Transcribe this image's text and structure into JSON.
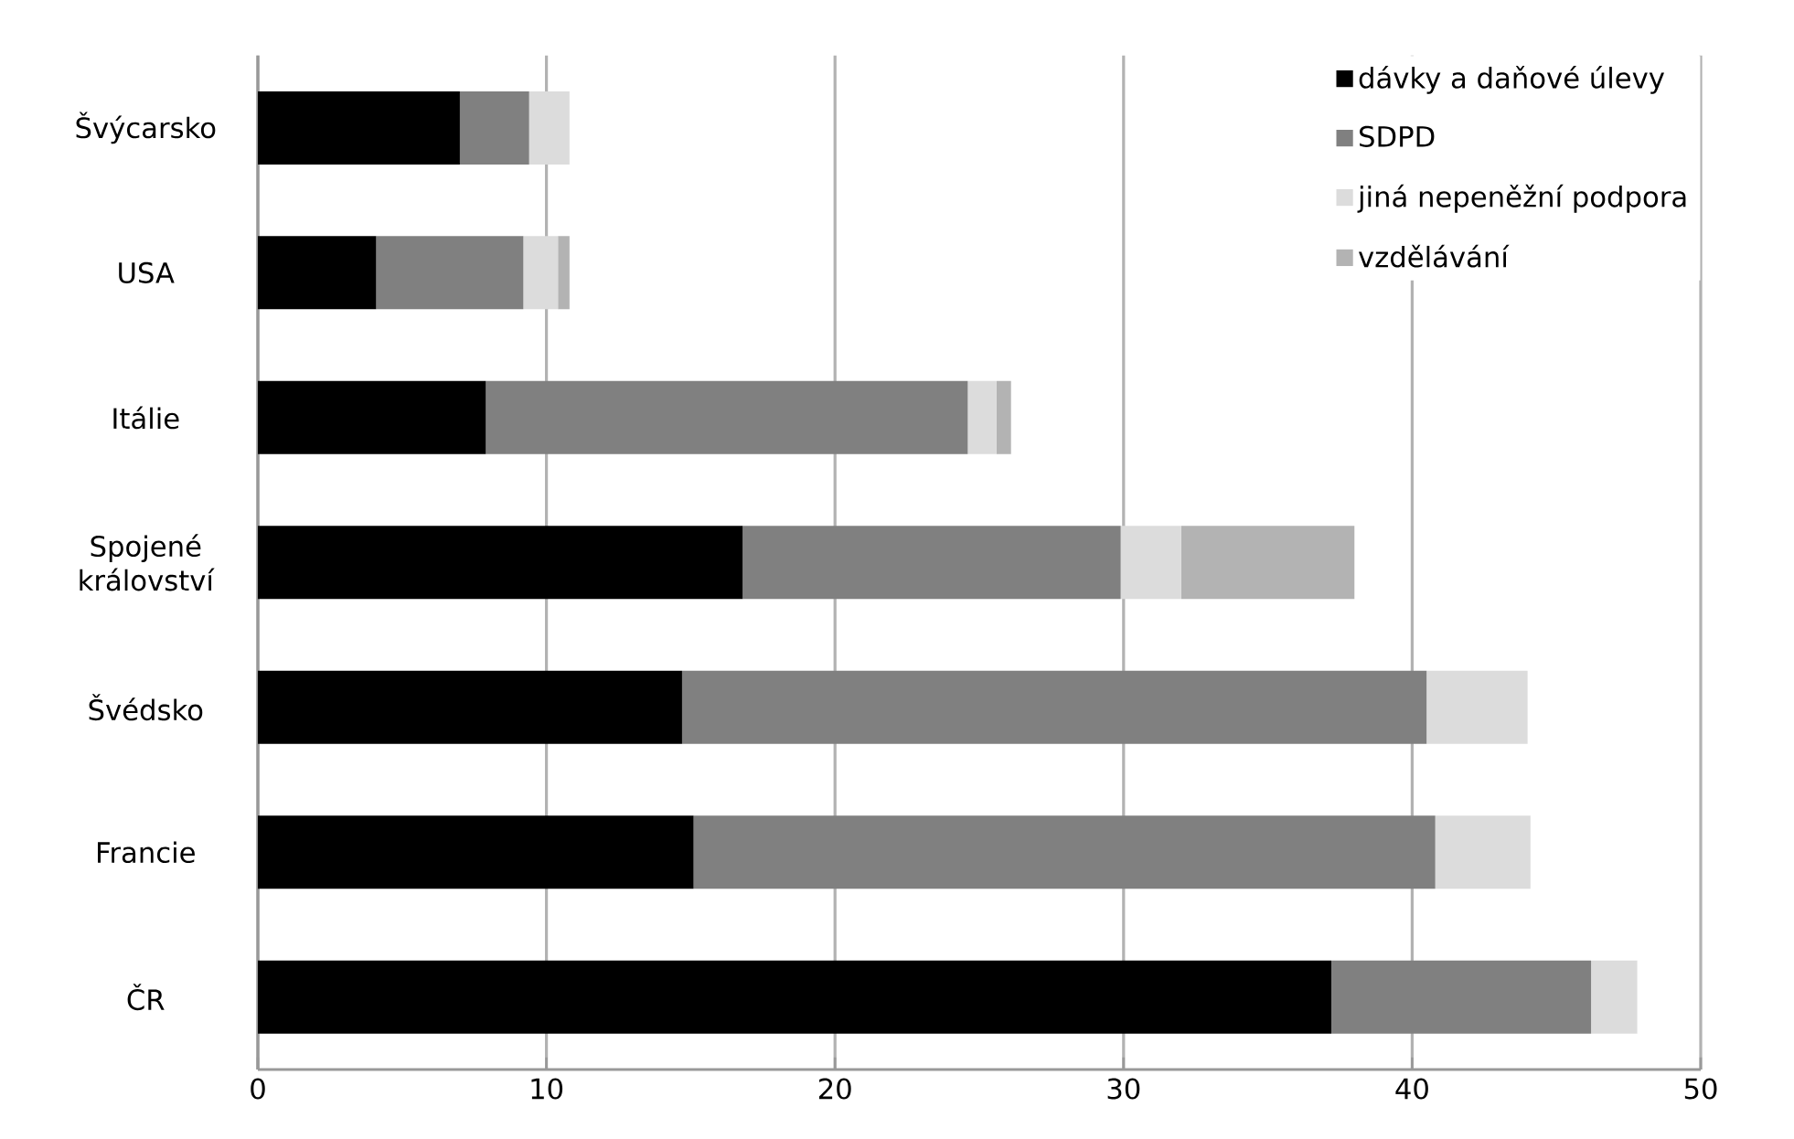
{
  "chart_data": {
    "type": "bar",
    "orientation": "horizontal",
    "stacked": true,
    "categories": [
      "Švýcarsko",
      "USA",
      "Itálie",
      "Spojené království",
      "Švédsko",
      "Francie",
      "ČR"
    ],
    "series": [
      {
        "name": "dávky a daňové úlevy",
        "color": "#000000",
        "values": [
          7.0,
          4.1,
          7.9,
          16.8,
          14.7,
          15.1,
          37.2
        ]
      },
      {
        "name": "SDPD",
        "color": "#808080",
        "values": [
          2.4,
          5.1,
          16.7,
          13.1,
          25.8,
          25.7,
          9.0
        ]
      },
      {
        "name": "jiná nepeněžní podpora",
        "color": "#dcdcdc",
        "values": [
          1.4,
          1.2,
          1.0,
          2.1,
          3.5,
          3.3,
          1.6
        ]
      },
      {
        "name": "vzdělávání",
        "color": "#b3b3b3",
        "values": [
          0,
          0.4,
          0.5,
          6.0,
          0,
          0,
          0
        ]
      }
    ],
    "xlim": [
      0,
      50
    ],
    "xticks": [
      0,
      10,
      20,
      30,
      40,
      50
    ],
    "grid": "x",
    "legend": "top right"
  }
}
